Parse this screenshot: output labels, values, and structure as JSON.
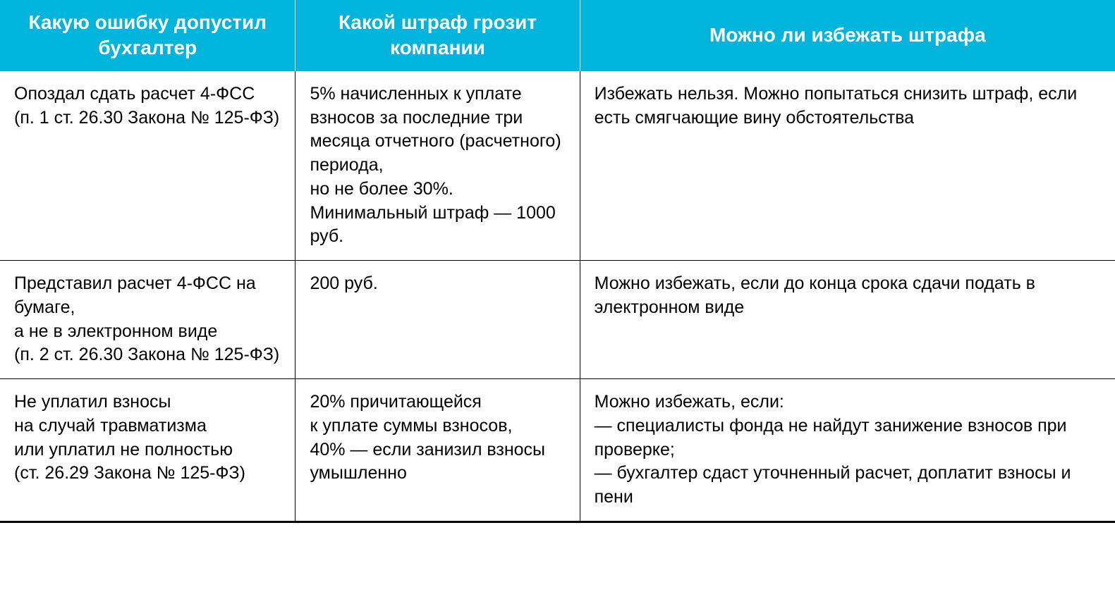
{
  "table": {
    "header_bg": "#00b4dc",
    "header_text_color": "#ffffff",
    "cell_text_color": "#000000",
    "border_color": "#000000",
    "header_fontsize": 28,
    "cell_fontsize": 25,
    "column_widths_pct": [
      26.5,
      25.5,
      48
    ],
    "columns": [
      "Какую ошибку\nдопустил бухгалтер",
      "Какой штраф\nгрозит компании",
      "Можно ли избежать штрафа"
    ],
    "rows": [
      {
        "c0": "Опоздал сдать расчет 4-ФСС\n(п. 1 ст. 26.30  Закона № 125-ФЗ)",
        "c1": "5% начисленных к уплате взносов за последние три месяца отчетного (расчетного) периода,\nно не более 30%.\nМинимальный штраф — 1000 руб.",
        "c2": "Избежать нельзя. Можно попытаться снизить штраф, если есть смягчающие вину обстоятельства"
      },
      {
        "c0": "Представил расчет 4-ФСС на бумаге,\nа не в электронном виде\n(п. 2 ст. 26.30 Закона № 125-ФЗ)",
        "c1": "200 руб.",
        "c2": "Можно избежать, если до конца срока сдачи подать в электронном виде"
      },
      {
        "c0": "Не уплатил взносы\nна случай травматизма\nили уплатил не полностью\n(ст. 26.29 Закона № 125-ФЗ)",
        "c1": "20% причитающейся\nк уплате суммы взносов,\n40% — если занизил взносы умышленно",
        "c2": "Можно избежать, если:\n— специалисты фонда не найдут занижение взносов при проверке;\n— бухгалтер сдаст уточненный расчет, доплатит взносы и пени"
      }
    ]
  }
}
